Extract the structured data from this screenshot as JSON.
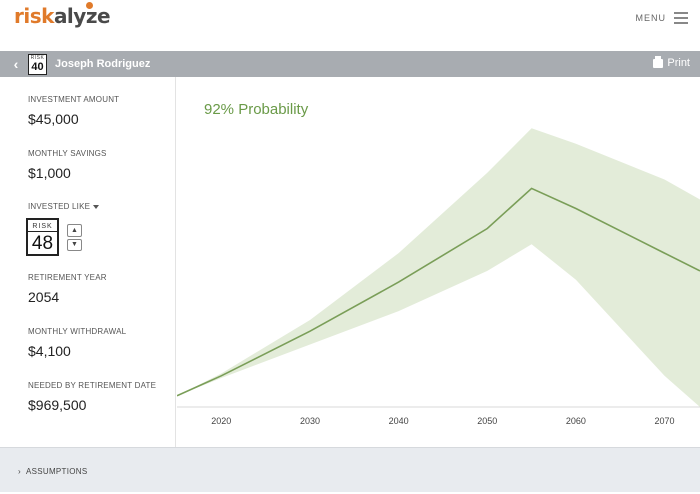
{
  "brand": {
    "logo_part1": "risk",
    "logo_part2": "alyze",
    "accent": "#e07a2a"
  },
  "topnav": {
    "menu_label": "MENU"
  },
  "header": {
    "badge_risk": "RISK",
    "badge_number": "40",
    "client_name": "Joseph Rodriguez",
    "print_label": "Print"
  },
  "sidebar": {
    "investment_amount": {
      "label": "INVESTMENT AMOUNT",
      "value": "$45,000"
    },
    "monthly_savings": {
      "label": "MONTHLY SAVINGS",
      "value": "$1,000"
    },
    "invested_like": {
      "label": "INVESTED LIKE",
      "badge_risk": "RISK",
      "badge_number": "48"
    },
    "retirement_year": {
      "label": "RETIREMENT YEAR",
      "value": "2054"
    },
    "monthly_withdrawal": {
      "label": "MONTHLY WITHDRAWAL",
      "value": "$4,100"
    },
    "needed_by_retirement": {
      "label": "NEEDED BY RETIREMENT DATE",
      "value": "$969,500"
    }
  },
  "chart": {
    "probability_label": "92% Probability"
  },
  "chart_data": {
    "type": "area",
    "title": "92% Probability",
    "xlabel": "",
    "ylabel": "",
    "x_ticks": [
      2020,
      2030,
      2040,
      2050,
      2060,
      2070
    ],
    "xlim": [
      2015,
      2074
    ],
    "ylim": [
      0,
      1300000
    ],
    "series": [
      {
        "role": "upper",
        "x": [
          2015,
          2020,
          2030,
          2040,
          2050,
          2055,
          2060,
          2070,
          2074
        ],
        "values": [
          50000,
          150000,
          390000,
          690000,
          1050000,
          1250000,
          1180000,
          1020000,
          930000
        ]
      },
      {
        "role": "median",
        "x": [
          2015,
          2020,
          2030,
          2040,
          2050,
          2055,
          2060,
          2070,
          2074
        ],
        "values": [
          50000,
          140000,
          340000,
          560000,
          800000,
          980000,
          890000,
          690000,
          610000
        ]
      },
      {
        "role": "lower",
        "x": [
          2015,
          2020,
          2030,
          2040,
          2050,
          2055,
          2060,
          2070,
          2074
        ],
        "values": [
          50000,
          130000,
          280000,
          430000,
          610000,
          730000,
          570000,
          140000,
          0
        ]
      }
    ],
    "grid": false,
    "colors": {
      "band": "#e3ecd9",
      "line": "#7a9e58",
      "label": "#6a9a48"
    }
  },
  "footer": {
    "assumptions_label": "ASSUMPTIONS"
  }
}
